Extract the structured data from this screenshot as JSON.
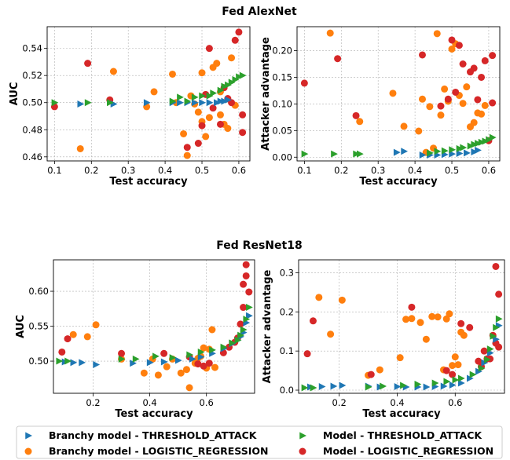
{
  "colors": {
    "blue": "#1f77b4",
    "orange": "#ff7f0e",
    "green": "#2ca02c",
    "red": "#d62728"
  },
  "legend": {
    "items": [
      {
        "label": "Branchy model - THRESHOLD_ATTACK",
        "marker": "triangle-right",
        "color": "#1f77b4"
      },
      {
        "label": "Model - THRESHOLD_ATTACK",
        "marker": "triangle-right",
        "color": "#2ca02c"
      },
      {
        "label": "Branchy model - LOGISTIC_REGRESSION",
        "marker": "circle",
        "color": "#ff7f0e"
      },
      {
        "label": "Model - LOGISTIC_REGRESSION",
        "marker": "circle",
        "color": "#d62728"
      }
    ]
  },
  "chart_data": [
    {
      "type": "scatter",
      "group_title": "Fed AlexNet",
      "xlabel": "Test accuracy",
      "ylabel": "AUC",
      "xlim": [
        0.08,
        0.63
      ],
      "ylim": [
        0.457,
        0.556
      ],
      "xticks": [
        "0.1",
        "0.2",
        "0.3",
        "0.4",
        "0.5",
        "0.6"
      ],
      "yticks": [
        "0.46",
        "0.48",
        "0.50",
        "0.52",
        "0.54"
      ],
      "grid": true,
      "series": [
        {
          "name": "Branchy model - THRESHOLD_ATTACK",
          "marker": "triangle-right",
          "color": "#1f77b4",
          "x": [
            0.17,
            0.26,
            0.35,
            0.42,
            0.44,
            0.46,
            0.48,
            0.5,
            0.52,
            0.54,
            0.55,
            0.56,
            0.57
          ],
          "y": [
            0.499,
            0.499,
            0.5,
            0.5,
            0.5,
            0.5,
            0.5,
            0.5,
            0.5,
            0.5,
            0.501,
            0.501,
            0.502
          ]
        },
        {
          "name": "Model - THRESHOLD_ATTACK",
          "marker": "triangle-right",
          "color": "#2ca02c",
          "x": [
            0.1,
            0.19,
            0.25,
            0.42,
            0.44,
            0.46,
            0.48,
            0.5,
            0.52,
            0.53,
            0.55,
            0.56,
            0.57,
            0.58,
            0.59,
            0.6,
            0.61
          ],
          "y": [
            0.5,
            0.5,
            0.5,
            0.501,
            0.504,
            0.501,
            0.504,
            0.505,
            0.505,
            0.507,
            0.509,
            0.512,
            0.513,
            0.515,
            0.517,
            0.519,
            0.52
          ]
        },
        {
          "name": "Branchy model - LOGISTIC_REGRESSION",
          "marker": "circle",
          "color": "#ff7f0e",
          "x": [
            0.17,
            0.26,
            0.35,
            0.37,
            0.42,
            0.43,
            0.45,
            0.46,
            0.47,
            0.48,
            0.49,
            0.5,
            0.5,
            0.51,
            0.52,
            0.53,
            0.54,
            0.55,
            0.55,
            0.56,
            0.57,
            0.58,
            0.59
          ],
          "y": [
            0.466,
            0.523,
            0.497,
            0.508,
            0.521,
            0.5,
            0.477,
            0.461,
            0.505,
            0.499,
            0.493,
            0.486,
            0.522,
            0.475,
            0.489,
            0.526,
            0.529,
            0.508,
            0.491,
            0.484,
            0.481,
            0.533,
            0.498
          ]
        },
        {
          "name": "Model - LOGISTIC_REGRESSION",
          "marker": "circle",
          "color": "#d62728",
          "x": [
            0.1,
            0.19,
            0.25,
            0.46,
            0.49,
            0.5,
            0.51,
            0.52,
            0.53,
            0.55,
            0.56,
            0.57,
            0.58,
            0.59,
            0.6,
            0.61,
            0.61
          ],
          "y": [
            0.497,
            0.529,
            0.502,
            0.467,
            0.47,
            0.483,
            0.506,
            0.54,
            0.496,
            0.484,
            0.511,
            0.503,
            0.5,
            0.546,
            0.552,
            0.491,
            0.478
          ]
        }
      ]
    },
    {
      "type": "scatter",
      "group_title": "Fed AlexNet",
      "xlabel": "Test accuracy",
      "ylabel": "Attacker advantage",
      "xlim": [
        0.08,
        0.63
      ],
      "ylim": [
        -0.007,
        0.245
      ],
      "xticks": [
        "0.1",
        "0.2",
        "0.3",
        "0.4",
        "0.5",
        "0.6"
      ],
      "yticks": [
        "0.00",
        "0.05",
        "0.10",
        "0.15",
        "0.20"
      ],
      "grid": true,
      "series": [
        {
          "name": "Branchy model - THRESHOLD_ATTACK",
          "marker": "triangle-right",
          "color": "#1f77b4",
          "x": [
            0.35,
            0.37,
            0.42,
            0.44,
            0.46,
            0.48,
            0.5,
            0.52,
            0.54,
            0.56,
            0.57
          ],
          "y": [
            0.009,
            0.011,
            0.004,
            0.004,
            0.004,
            0.005,
            0.006,
            0.007,
            0.008,
            0.01,
            0.013
          ]
        },
        {
          "name": "Model - THRESHOLD_ATTACK",
          "marker": "triangle-right",
          "color": "#2ca02c",
          "x": [
            0.1,
            0.18,
            0.24,
            0.25,
            0.44,
            0.46,
            0.48,
            0.5,
            0.52,
            0.53,
            0.55,
            0.56,
            0.57,
            0.58,
            0.59,
            0.6,
            0.61
          ],
          "y": [
            0.006,
            0.006,
            0.006,
            0.006,
            0.008,
            0.011,
            0.012,
            0.014,
            0.016,
            0.018,
            0.021,
            0.024,
            0.026,
            0.028,
            0.03,
            0.033,
            0.037
          ]
        },
        {
          "name": "Branchy model - LOGISTIC_REGRESSION",
          "marker": "circle",
          "color": "#ff7f0e",
          "x": [
            0.17,
            0.25,
            0.34,
            0.37,
            0.41,
            0.42,
            0.43,
            0.44,
            0.45,
            0.46,
            0.47,
            0.48,
            0.49,
            0.5,
            0.51,
            0.52,
            0.53,
            0.54,
            0.55,
            0.56,
            0.57,
            0.58,
            0.59
          ],
          "y": [
            0.233,
            0.067,
            0.12,
            0.058,
            0.049,
            0.109,
            0.009,
            0.095,
            0.017,
            0.232,
            0.079,
            0.128,
            0.105,
            0.203,
            0.213,
            0.116,
            0.101,
            0.132,
            0.057,
            0.065,
            0.083,
            0.081,
            0.097
          ]
        },
        {
          "name": "Model - LOGISTIC_REGRESSION",
          "marker": "circle",
          "color": "#d62728",
          "x": [
            0.1,
            0.19,
            0.24,
            0.42,
            0.47,
            0.49,
            0.5,
            0.51,
            0.52,
            0.53,
            0.55,
            0.56,
            0.57,
            0.58,
            0.59,
            0.6,
            0.61,
            0.61
          ],
          "y": [
            0.139,
            0.185,
            0.078,
            0.192,
            0.096,
            0.109,
            0.22,
            0.122,
            0.21,
            0.175,
            0.16,
            0.167,
            0.108,
            0.15,
            0.181,
            0.031,
            0.102,
            0.191
          ]
        }
      ]
    },
    {
      "type": "scatter",
      "group_title": "Fed ResNet18",
      "xlabel": "Test accuracy",
      "ylabel": "AUC",
      "xlim": [
        0.06,
        0.77
      ],
      "ylim": [
        0.454,
        0.645
      ],
      "xticks": [
        "0.2",
        "0.4",
        "0.6"
      ],
      "yticks": [
        "0.50",
        "0.55",
        "0.60"
      ],
      "grid": true,
      "series": [
        {
          "name": "Branchy model - THRESHOLD_ATTACK",
          "marker": "triangle-right",
          "color": "#1f77b4",
          "x": [
            0.1,
            0.13,
            0.16,
            0.21,
            0.34,
            0.4,
            0.45,
            0.5,
            0.55,
            0.58,
            0.62,
            0.66,
            0.69,
            0.71,
            0.72,
            0.73,
            0.74,
            0.75
          ],
          "y": [
            0.499,
            0.498,
            0.498,
            0.495,
            0.497,
            0.498,
            0.499,
            0.501,
            0.503,
            0.506,
            0.511,
            0.518,
            0.525,
            0.53,
            0.535,
            0.541,
            0.555,
            0.565
          ]
        },
        {
          "name": "Model - THRESHOLD_ATTACK",
          "marker": "triangle-right",
          "color": "#2ca02c",
          "x": [
            0.08,
            0.11,
            0.3,
            0.35,
            0.42,
            0.48,
            0.54,
            0.58,
            0.62,
            0.66,
            0.69,
            0.71,
            0.72,
            0.73,
            0.74,
            0.75
          ],
          "y": [
            0.5,
            0.5,
            0.503,
            0.503,
            0.507,
            0.505,
            0.509,
            0.513,
            0.516,
            0.52,
            0.526,
            0.53,
            0.537,
            0.545,
            0.56,
            0.577
          ]
        },
        {
          "name": "Branchy model - LOGISTIC_REGRESSION",
          "marker": "circle",
          "color": "#ff7f0e",
          "x": [
            0.13,
            0.18,
            0.21,
            0.3,
            0.38,
            0.41,
            0.43,
            0.46,
            0.48,
            0.51,
            0.53,
            0.54,
            0.56,
            0.57,
            0.58,
            0.59,
            0.6,
            0.61,
            0.62,
            0.63
          ],
          "y": [
            0.538,
            0.535,
            0.552,
            0.503,
            0.483,
            0.503,
            0.48,
            0.492,
            0.503,
            0.483,
            0.488,
            0.462,
            0.497,
            0.504,
            0.507,
            0.519,
            0.49,
            0.517,
            0.545,
            0.491
          ]
        },
        {
          "name": "Model - LOGISTIC_REGRESSION",
          "marker": "circle",
          "color": "#d62728",
          "x": [
            0.09,
            0.11,
            0.3,
            0.45,
            0.54,
            0.57,
            0.59,
            0.61,
            0.66,
            0.68,
            0.7,
            0.71,
            0.72,
            0.73,
            0.73,
            0.74,
            0.74,
            0.75
          ],
          "y": [
            0.513,
            0.532,
            0.511,
            0.511,
            0.506,
            0.496,
            0.493,
            0.497,
            0.512,
            0.52,
            0.527,
            0.533,
            0.553,
            0.577,
            0.61,
            0.622,
            0.638,
            0.599
          ]
        }
      ]
    },
    {
      "type": "scatter",
      "group_title": "Fed ResNet18",
      "xlabel": "Test accuracy",
      "ylabel": "Attacker advantage",
      "xlim": [
        0.06,
        0.77
      ],
      "ylim": [
        -0.008,
        0.333
      ],
      "xticks": [
        "0.2",
        "0.4",
        "0.6"
      ],
      "yticks": [
        "0.0",
        "0.1",
        "0.2",
        "0.3"
      ],
      "grid": true,
      "series": [
        {
          "name": "Branchy model - THRESHOLD_ATTACK",
          "marker": "triangle-right",
          "color": "#1f77b4",
          "x": [
            0.1,
            0.14,
            0.18,
            0.21,
            0.3,
            0.34,
            0.4,
            0.43,
            0.47,
            0.5,
            0.53,
            0.56,
            0.59,
            0.62,
            0.65,
            0.68,
            0.7,
            0.72,
            0.74,
            0.75
          ],
          "y": [
            0.008,
            0.009,
            0.01,
            0.012,
            0.01,
            0.008,
            0.009,
            0.008,
            0.008,
            0.008,
            0.009,
            0.01,
            0.013,
            0.018,
            0.03,
            0.048,
            0.07,
            0.095,
            0.13,
            0.165
          ]
        },
        {
          "name": "Model - THRESHOLD_ATTACK",
          "marker": "triangle-right",
          "color": "#2ca02c",
          "x": [
            0.08,
            0.11,
            0.3,
            0.35,
            0.42,
            0.47,
            0.53,
            0.57,
            0.6,
            0.62,
            0.66,
            0.69,
            0.71,
            0.72,
            0.73,
            0.74,
            0.75
          ],
          "y": [
            0.006,
            0.006,
            0.008,
            0.01,
            0.012,
            0.015,
            0.018,
            0.022,
            0.026,
            0.03,
            0.04,
            0.056,
            0.078,
            0.105,
            0.138,
            0.16,
            0.182
          ]
        },
        {
          "name": "Branchy model - LOGISTIC_REGRESSION",
          "marker": "circle",
          "color": "#ff7f0e",
          "x": [
            0.13,
            0.17,
            0.21,
            0.3,
            0.34,
            0.41,
            0.43,
            0.45,
            0.48,
            0.5,
            0.52,
            0.54,
            0.56,
            0.57,
            0.58,
            0.59,
            0.6,
            0.61,
            0.62,
            0.63
          ],
          "y": [
            0.237,
            0.143,
            0.23,
            0.038,
            0.052,
            0.083,
            0.181,
            0.183,
            0.173,
            0.13,
            0.188,
            0.187,
            0.052,
            0.182,
            0.195,
            0.063,
            0.085,
            0.065,
            0.148,
            0.14
          ]
        },
        {
          "name": "Model - LOGISTIC_REGRESSION",
          "marker": "circle",
          "color": "#d62728",
          "x": [
            0.09,
            0.11,
            0.31,
            0.45,
            0.57,
            0.59,
            0.62,
            0.65,
            0.68,
            0.69,
            0.7,
            0.71,
            0.72,
            0.73,
            0.74,
            0.74,
            0.75,
            0.75
          ],
          "y": [
            0.093,
            0.177,
            0.04,
            0.212,
            0.05,
            0.04,
            0.17,
            0.16,
            0.074,
            0.06,
            0.1,
            0.08,
            0.08,
            0.14,
            0.12,
            0.316,
            0.245,
            0.11
          ]
        }
      ]
    }
  ]
}
